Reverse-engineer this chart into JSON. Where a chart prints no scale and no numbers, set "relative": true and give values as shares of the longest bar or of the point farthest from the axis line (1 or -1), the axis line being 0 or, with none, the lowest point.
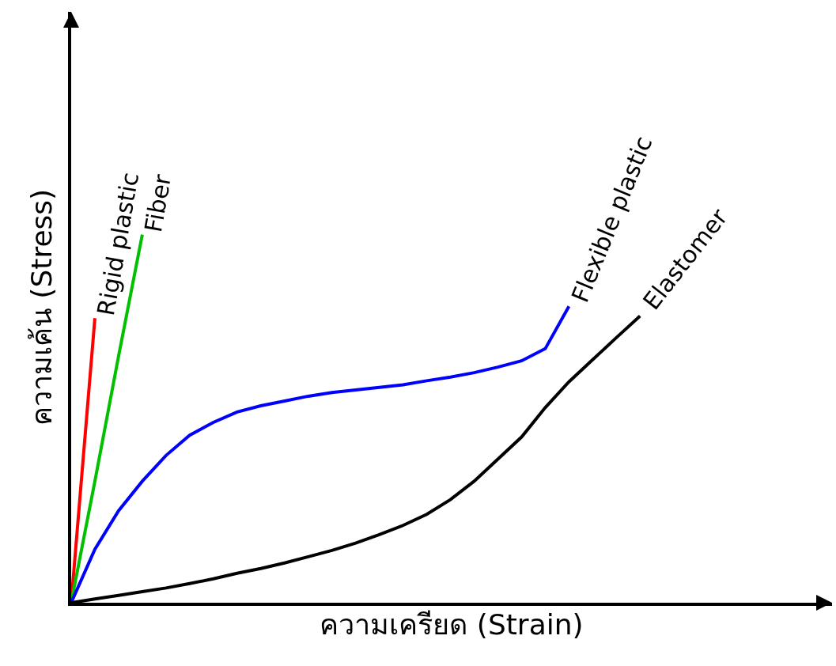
{
  "chart_data": {
    "type": "line",
    "relative": true,
    "xlabel": "ความเครียด (Strain)",
    "ylabel": "ความเค้น (Stress)",
    "legend": false,
    "marker": "none",
    "line_style": "solid",
    "categories": [
      null,
      null,
      null,
      null,
      null,
      null,
      null,
      null,
      null,
      null,
      null,
      null,
      null,
      null,
      null,
      null,
      null,
      null,
      null,
      null,
      null,
      null,
      null,
      null,
      null,
      null,
      null,
      null,
      null,
      null,
      null,
      null,
      null
    ],
    "series": [
      {
        "name": "Rigid plastic",
        "color": "#ff0000",
        "values": [
          0,
          0.773,
          null,
          null,
          null,
          null,
          null,
          null,
          null,
          null,
          null,
          null,
          null,
          null,
          null,
          null,
          null,
          null,
          null,
          null,
          null,
          null,
          null,
          null,
          null,
          null,
          null,
          null,
          null,
          null,
          null,
          null,
          null
        ]
      },
      {
        "name": "Fiber",
        "color": "#00c000",
        "values": [
          0,
          0.33,
          0.67,
          1,
          null,
          null,
          null,
          null,
          null,
          null,
          null,
          null,
          null,
          null,
          null,
          null,
          null,
          null,
          null,
          null,
          null,
          null,
          null,
          null,
          null,
          null,
          null,
          null,
          null,
          null,
          null,
          null,
          null
        ]
      },
      {
        "name": "Flexible plastic",
        "color": "#0000ff",
        "values": [
          0,
          0.145,
          0.25,
          0.33,
          0.4,
          0.455,
          0.49,
          0.518,
          0.535,
          0.548,
          0.561,
          0.571,
          0.578,
          0.585,
          0.592,
          0.603,
          0.613,
          0.625,
          0.64,
          0.657,
          0.69,
          0.805,
          null,
          null,
          null,
          null,
          null,
          null,
          null,
          null,
          null,
          null,
          null
        ]
      },
      {
        "name": "Elastomer",
        "color": "#000000",
        "values": [
          0,
          0.01,
          0.02,
          0.03,
          0.04,
          0.052,
          0.065,
          0.08,
          0.093,
          0.108,
          0.125,
          0.142,
          0.162,
          0.185,
          0.21,
          0.24,
          0.28,
          0.33,
          0.39,
          0.45,
          0.53,
          0.6,
          0.66,
          0.72,
          0.779,
          null,
          null,
          null,
          null,
          null,
          null,
          null,
          null
        ]
      }
    ]
  }
}
